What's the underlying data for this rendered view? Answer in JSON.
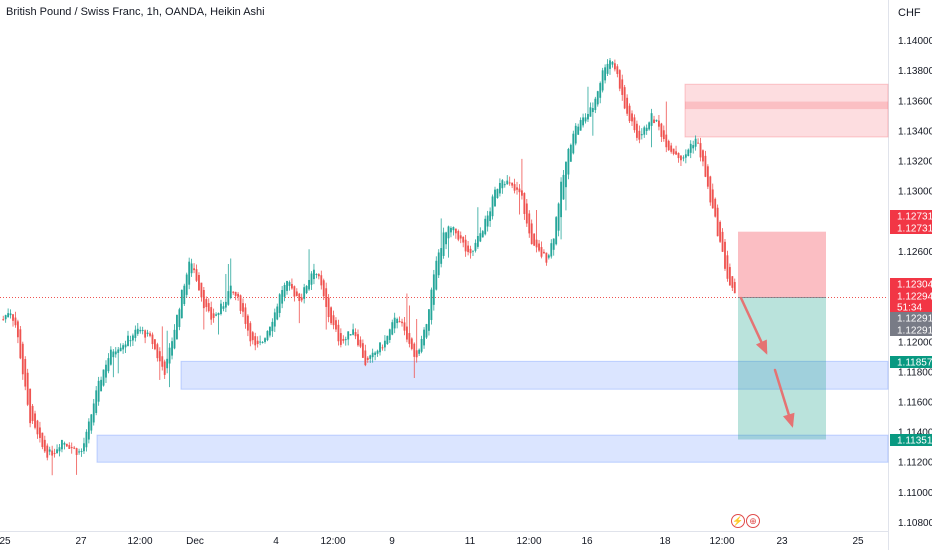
{
  "header": {
    "title": "British Pound / Swiss Franc, 1h, OANDA, Heikin Ashi",
    "currency": "CHF"
  },
  "colors": {
    "up": "#26a69a",
    "down": "#ef5350",
    "demand_zone": "#2962ff",
    "supply_zone": "#f23645",
    "arrow": "#e57373"
  },
  "icons": [
    "flash-icon",
    "calendar-event-icon"
  ],
  "chart_data": {
    "type": "candlestick",
    "symbol": "GBPCHF",
    "timeframe": "1h",
    "style": "Heikin Ashi",
    "ylim": [
      1.1075,
      1.1415
    ],
    "y_ticks": [
      "1.14000",
      "1.13800",
      "1.13600",
      "1.13400",
      "1.13200",
      "1.13000",
      "1.12800",
      "1.12600",
      "1.12400",
      "1.12200",
      "1.12000",
      "1.11800",
      "1.11600",
      "1.11400",
      "1.11200",
      "1.11000",
      "1.10800"
    ],
    "x_ticks": [
      "25",
      "27",
      "12:00",
      "Dec",
      "4",
      "12:00",
      "9",
      "11",
      "12:00",
      "16",
      "18",
      "12:00",
      "23",
      "25"
    ],
    "price_path": [
      [
        0,
        1.1215
      ],
      [
        1,
        1.1222
      ],
      [
        2,
        1.121
      ],
      [
        3,
        1.118
      ],
      [
        4,
        1.115
      ],
      [
        5,
        1.114
      ],
      [
        6,
        1.113
      ],
      [
        7,
        1.1125
      ],
      [
        8,
        1.1128
      ],
      [
        9,
        1.1135
      ],
      [
        10,
        1.1132
      ],
      [
        11,
        1.1128
      ],
      [
        12,
        1.1126
      ],
      [
        13,
        1.114
      ],
      [
        14,
        1.116
      ],
      [
        15,
        1.1175
      ],
      [
        16,
        1.1188
      ],
      [
        17,
        1.1195
      ],
      [
        18,
        1.1198
      ],
      [
        19,
        1.12
      ],
      [
        20,
        1.1205
      ],
      [
        21,
        1.1208
      ],
      [
        22,
        1.1205
      ],
      [
        23,
        1.12
      ],
      [
        24,
        1.1188
      ],
      [
        25,
        1.118
      ],
      [
        26,
        1.12
      ],
      [
        27,
        1.122
      ],
      [
        28,
        1.124
      ],
      [
        29,
        1.1255
      ],
      [
        30,
        1.124
      ],
      [
        31,
        1.1225
      ],
      [
        32,
        1.1215
      ],
      [
        33,
        1.1218
      ],
      [
        34,
        1.1225
      ],
      [
        35,
        1.1235
      ],
      [
        36,
        1.123
      ],
      [
        37,
        1.122
      ],
      [
        38,
        1.1205
      ],
      [
        39,
        1.1195
      ],
      [
        40,
        1.12
      ],
      [
        41,
        1.121
      ],
      [
        42,
        1.122
      ],
      [
        43,
        1.1235
      ],
      [
        44,
        1.1238
      ],
      [
        45,
        1.1232
      ],
      [
        46,
        1.1228
      ],
      [
        47,
        1.124
      ],
      [
        48,
        1.125
      ],
      [
        49,
        1.1238
      ],
      [
        50,
        1.122
      ],
      [
        51,
        1.121
      ],
      [
        52,
        1.12
      ],
      [
        53,
        1.1202
      ],
      [
        54,
        1.121
      ],
      [
        55,
        1.1198
      ],
      [
        56,
        1.1185
      ],
      [
        57,
        1.119
      ],
      [
        58,
        1.1196
      ],
      [
        59,
        1.12
      ],
      [
        60,
        1.121
      ],
      [
        61,
        1.1218
      ],
      [
        62,
        1.1205
      ],
      [
        63,
        1.1195
      ],
      [
        64,
        1.119
      ],
      [
        65,
        1.1205
      ],
      [
        66,
        1.123
      ],
      [
        67,
        1.1255
      ],
      [
        68,
        1.127
      ],
      [
        69,
        1.1275
      ],
      [
        70,
        1.1272
      ],
      [
        71,
        1.1265
      ],
      [
        72,
        1.1255
      ],
      [
        73,
        1.1265
      ],
      [
        74,
        1.1275
      ],
      [
        75,
        1.1285
      ],
      [
        76,
        1.13
      ],
      [
        77,
        1.131
      ],
      [
        78,
        1.1305
      ],
      [
        79,
        1.13
      ],
      [
        80,
        1.1298
      ],
      [
        81,
        1.1275
      ],
      [
        82,
        1.1262
      ],
      [
        83,
        1.1258
      ],
      [
        84,
        1.1255
      ],
      [
        85,
        1.127
      ],
      [
        86,
        1.13
      ],
      [
        87,
        1.132
      ],
      [
        88,
        1.134
      ],
      [
        89,
        1.1345
      ],
      [
        90,
        1.135
      ],
      [
        91,
        1.1355
      ],
      [
        92,
        1.137
      ],
      [
        93,
        1.1385
      ],
      [
        94,
        1.1388
      ],
      [
        95,
        1.1375
      ],
      [
        96,
        1.1355
      ],
      [
        97,
        1.1345
      ],
      [
        98,
        1.1335
      ],
      [
        99,
        1.134
      ],
      [
        100,
        1.135
      ],
      [
        101,
        1.1345
      ],
      [
        102,
        1.1335
      ],
      [
        103,
        1.1328
      ],
      [
        104,
        1.1325
      ],
      [
        105,
        1.132
      ],
      [
        106,
        1.133
      ],
      [
        107,
        1.1335
      ],
      [
        108,
        1.132
      ],
      [
        109,
        1.1298
      ],
      [
        110,
        1.128
      ],
      [
        111,
        1.126
      ],
      [
        112,
        1.124
      ],
      [
        113,
        1.123
      ]
    ],
    "zones": [
      {
        "kind": "demand",
        "from": 1.11685,
        "to": 1.1187
      },
      {
        "kind": "demand",
        "from": 1.112,
        "to": 1.1138
      },
      {
        "kind": "supply",
        "from": 1.1336,
        "to": 1.1371
      }
    ],
    "position": {
      "direction": "short",
      "entry": 1.12294,
      "stop": 1.12731,
      "target": 1.11351
    },
    "axis_labels": [
      {
        "value": 1.12731,
        "text": "1.12731",
        "kind": "red"
      },
      {
        "value": 1.12731,
        "text": "1.12731",
        "kind": "red"
      },
      {
        "value": 1.12304,
        "text": "1.12304",
        "kind": "red"
      },
      {
        "value": 1.12294,
        "text": "1.12294",
        "kind": "red"
      },
      {
        "value": 1.12294,
        "text": "51:34",
        "kind": "red"
      },
      {
        "value": 1.12291,
        "text": "1.12291",
        "kind": "gray"
      },
      {
        "value": 1.12291,
        "text": "1.12291",
        "kind": "gray"
      },
      {
        "value": 1.11857,
        "text": "1.11857",
        "kind": "green"
      },
      {
        "value": 1.11351,
        "text": "1.11351",
        "kind": "green"
      }
    ]
  }
}
